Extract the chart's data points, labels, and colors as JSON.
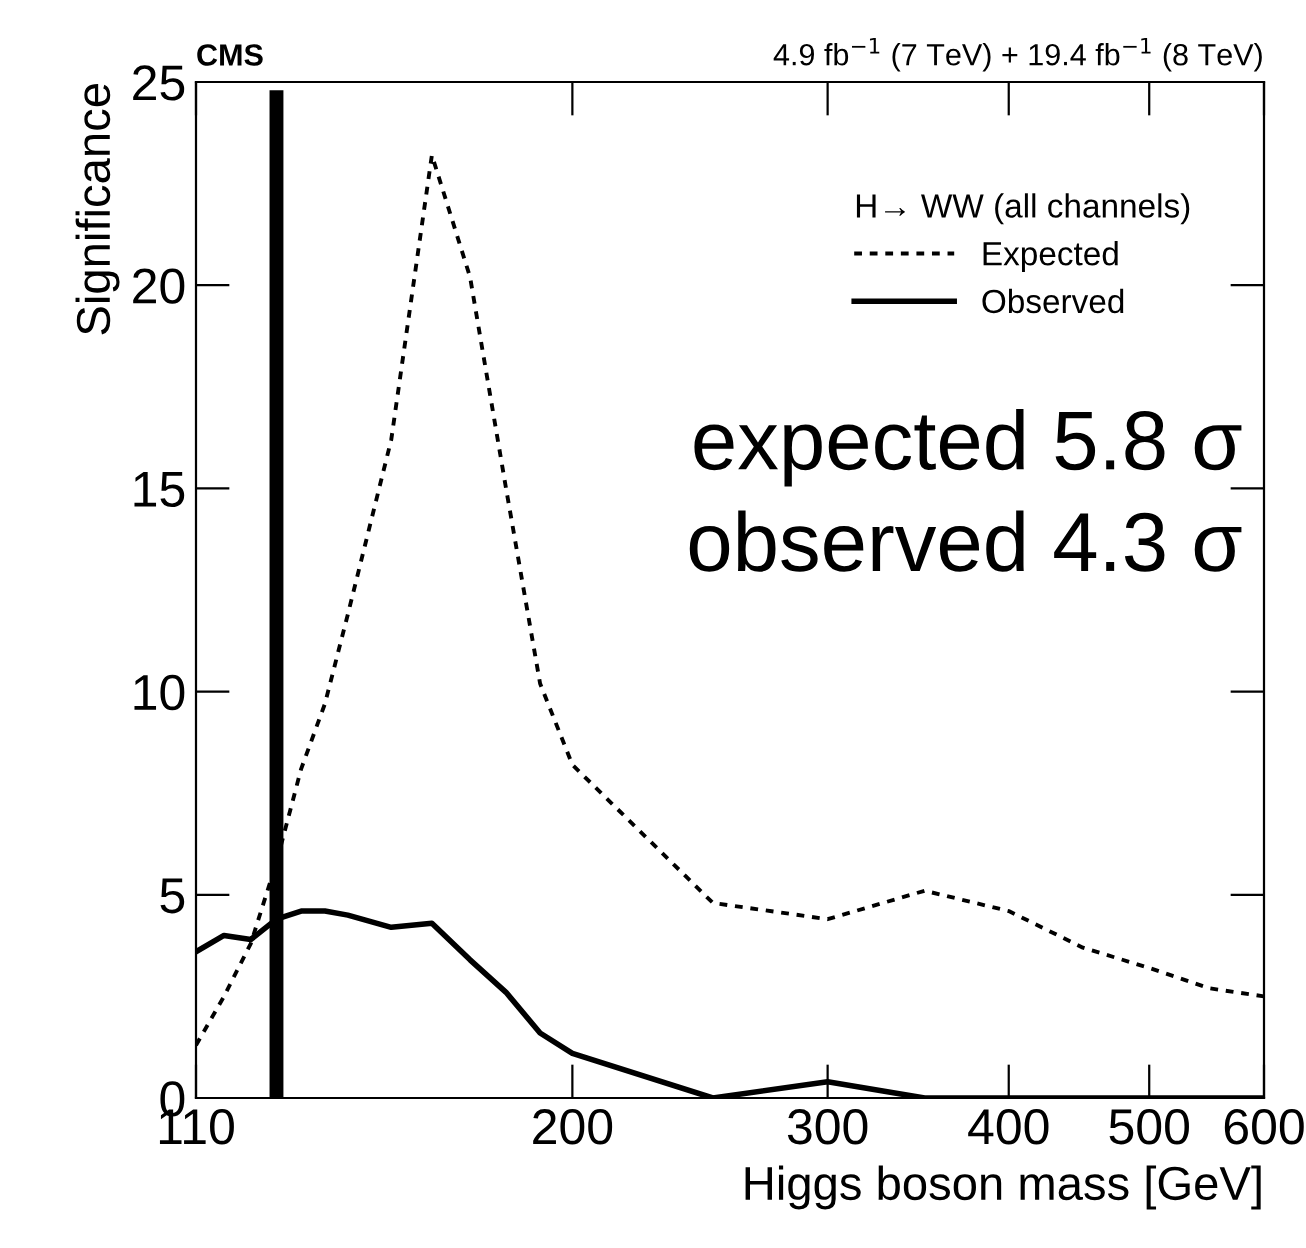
{
  "chart_data": {
    "type": "line",
    "title": "CMS",
    "subtitle": "4.9 fb$^{−1}$ (7 TeV) + 19.4 fb$^{−1}$ (8 TeV)",
    "xlabel": "Higgs boson mass [GeV]",
    "ylabel": "Significance",
    "legend_title": "H→ WW (all channels)",
    "x": [
      110,
      115,
      120,
      125,
      130,
      135,
      140,
      150,
      160,
      170,
      180,
      190,
      200,
      250,
      300,
      350,
      400,
      450,
      500,
      550,
      600
    ],
    "series": [
      {
        "name": "Expected",
        "color": "#000000",
        "line_style": "dotted",
        "values": [
          1.3,
          2.5,
          3.8,
          5.8,
          8.1,
          9.7,
          11.9,
          16.2,
          23.2,
          20.2,
          15.0,
          10.2,
          8.2,
          4.8,
          4.4,
          5.1,
          4.6,
          3.7,
          3.2,
          2.7,
          2.5
        ]
      },
      {
        "name": "Observed",
        "color": "#000000",
        "line_style": "solid",
        "values": [
          3.6,
          4.0,
          3.9,
          4.4,
          4.6,
          4.6,
          4.5,
          4.2,
          4.3,
          3.4,
          2.6,
          1.6,
          1.1,
          0,
          0.4,
          0,
          0,
          0,
          0,
          0,
          0
        ]
      }
    ],
    "ref_lines": [
      {
        "axis": "x",
        "value": 125,
        "color": "#000000"
      }
    ],
    "annotations": [
      "expected 5.8 σ",
      "observed 4.3 σ"
    ],
    "log": "x",
    "xlim": [
      110,
      600
    ],
    "xticks": [
      110,
      200,
      300,
      400,
      500,
      600
    ],
    "ylim": [
      0,
      25
    ],
    "yticks": [
      0,
      5,
      10,
      15,
      20,
      25
    ],
    "grid": false,
    "legend": "top right",
    "marker": "none"
  }
}
